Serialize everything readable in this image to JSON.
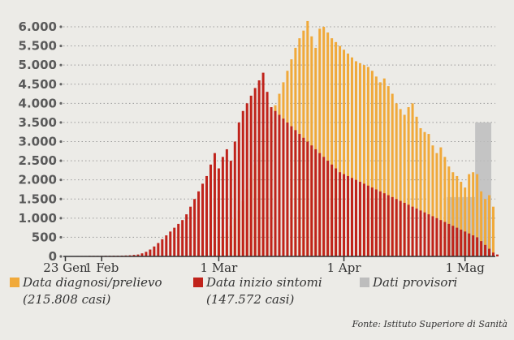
{
  "chart_data": {
    "type": "bar",
    "colors": {
      "diagnosi": "#f0a93a",
      "sintomi": "#c0231b",
      "provvisori": "#bdbdbd"
    },
    "ylim": [
      0,
      6000
    ],
    "y_ticks": [
      {
        "value": 0,
        "label": "0"
      },
      {
        "value": 500,
        "label": "500"
      },
      {
        "value": 1000,
        "label": "1.000"
      },
      {
        "value": 1500,
        "label": "1.500"
      },
      {
        "value": 2000,
        "label": "2.000"
      },
      {
        "value": 2500,
        "label": "2.500"
      },
      {
        "value": 3000,
        "label": "3.000"
      },
      {
        "value": 3500,
        "label": "3.500"
      },
      {
        "value": 4000,
        "label": "4.000"
      },
      {
        "value": 4500,
        "label": "4.500"
      },
      {
        "value": 5000,
        "label": "5.000"
      },
      {
        "value": 5500,
        "label": "5.500"
      },
      {
        "value": 6000,
        "label": "6.000"
      }
    ],
    "x_ticks": [
      {
        "day": 0,
        "label": "23 Gen"
      },
      {
        "day": 9,
        "label": "1 Feb"
      },
      {
        "day": 38,
        "label": "1 Mar"
      },
      {
        "day": 69,
        "label": "1 Apr"
      },
      {
        "day": 99,
        "label": "1 Mag"
      }
    ],
    "x_range": [
      0,
      107
    ],
    "provisional": [
      {
        "start_day": 95,
        "end_day": 102,
        "value": 1550
      },
      {
        "start_day": 102,
        "end_day": 106,
        "value": 3500
      }
    ],
    "series": [
      {
        "name": "Data diagnosi/prelievo",
        "key": "diagnosi",
        "values": [
          0,
          0,
          0,
          0,
          0,
          0,
          0,
          0,
          0,
          0,
          0,
          0,
          0,
          0,
          0,
          0,
          0,
          0,
          0,
          0,
          0,
          0,
          0,
          0,
          0,
          0,
          0,
          0,
          0,
          0,
          0,
          20,
          40,
          80,
          120,
          180,
          240,
          320,
          420,
          520,
          650,
          800,
          980,
          1200,
          1450,
          1750,
          2050,
          2400,
          2700,
          3050,
          3350,
          3650,
          3950,
          4250,
          4550,
          4850,
          5150,
          5450,
          5700,
          5900,
          6150,
          5750,
          5450,
          5950,
          6000,
          5850,
          5700,
          5600,
          5500,
          5400,
          5300,
          5200,
          5100,
          5050,
          5000,
          4950,
          4850,
          4700,
          4550,
          4650,
          4450,
          4250,
          4000,
          3850,
          3700,
          3900,
          4000,
          3650,
          3350,
          3250,
          3200,
          2900,
          2700,
          2850,
          2600,
          2350,
          2200,
          2100,
          1950,
          1800,
          2150,
          2200,
          2150,
          1700,
          1500,
          1600,
          1300,
          0
        ]
      },
      {
        "name": "Data inizio sintomi",
        "key": "sintomi",
        "values": [
          10,
          10,
          10,
          12,
          12,
          12,
          15,
          15,
          15,
          15,
          18,
          18,
          20,
          20,
          22,
          25,
          30,
          40,
          50,
          80,
          120,
          180,
          260,
          350,
          450,
          550,
          650,
          750,
          850,
          950,
          1100,
          1300,
          1500,
          1700,
          1900,
          2100,
          2400,
          2700,
          2300,
          2600,
          2800,
          2500,
          3000,
          3500,
          3800,
          4000,
          4200,
          4400,
          4600,
          4800,
          4300,
          3900,
          3800,
          3700,
          3600,
          3500,
          3400,
          3300,
          3200,
          3100,
          3000,
          2900,
          2800,
          2700,
          2600,
          2500,
          2400,
          2300,
          2200,
          2150,
          2100,
          2050,
          2000,
          1950,
          1900,
          1850,
          1800,
          1750,
          1700,
          1650,
          1600,
          1550,
          1500,
          1450,
          1400,
          1350,
          1300,
          1250,
          1200,
          1150,
          1100,
          1050,
          1000,
          950,
          900,
          850,
          800,
          750,
          700,
          650,
          600,
          550,
          500,
          400,
          300,
          200,
          100,
          50
        ]
      }
    ],
    "legend": [
      {
        "key": "diagnosi",
        "label": "Data diagnosi/prelievo",
        "sub": "(215.808 casi)"
      },
      {
        "key": "sintomi",
        "label": "Data inizio sintomi",
        "sub": "(147.572 casi)"
      },
      {
        "key": "provvisori",
        "label": "Dati provisori",
        "sub": ""
      }
    ],
    "source": "Fonte: Istituto Superiore di Sanità"
  }
}
